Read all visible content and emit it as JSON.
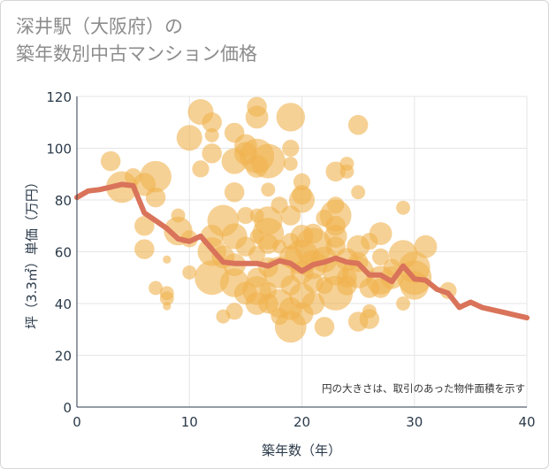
{
  "title": {
    "line1": "深井駅（大阪府）の",
    "line2": "築年数別中古マンション価格"
  },
  "note": "円の大きさは、取引のあった物件面積を示す",
  "colors": {
    "bubble": "#f0b34e",
    "line": "#d9735a",
    "grid": "#e6e6e6",
    "axis": "#2b3a4a"
  },
  "chart_data": {
    "type": "scatter",
    "xlabel": "築年数（年）",
    "ylabel": "坪（3.3㎡）単価（万円）",
    "xlim": [
      0,
      40
    ],
    "ylim": [
      0,
      120
    ],
    "xticks": [
      0,
      10,
      20,
      30,
      40
    ],
    "yticks": [
      0,
      20,
      40,
      60,
      80,
      100,
      120
    ],
    "grid": true,
    "bubbles": [
      {
        "x": 3,
        "y": 95,
        "s": 5
      },
      {
        "x": 4,
        "y": 85,
        "s": 9
      },
      {
        "x": 5,
        "y": 89,
        "s": 4
      },
      {
        "x": 6,
        "y": 86,
        "s": 6
      },
      {
        "x": 7,
        "y": 89,
        "s": 9
      },
      {
        "x": 7,
        "y": 81,
        "s": 5
      },
      {
        "x": 6,
        "y": 70,
        "s": 5
      },
      {
        "x": 6,
        "y": 61,
        "s": 5
      },
      {
        "x": 7,
        "y": 46,
        "s": 3
      },
      {
        "x": 8,
        "y": 44,
        "s": 3
      },
      {
        "x": 8,
        "y": 42,
        "s": 3
      },
      {
        "x": 8,
        "y": 39,
        "s": 1
      },
      {
        "x": 8,
        "y": 57,
        "s": 1
      },
      {
        "x": 9,
        "y": 74,
        "s": 3
      },
      {
        "x": 9,
        "y": 68,
        "s": 8
      },
      {
        "x": 10,
        "y": 104,
        "s": 7
      },
      {
        "x": 10,
        "y": 65,
        "s": 4
      },
      {
        "x": 10,
        "y": 52,
        "s": 3
      },
      {
        "x": 11,
        "y": 114,
        "s": 7
      },
      {
        "x": 12,
        "y": 110,
        "s": 5
      },
      {
        "x": 12,
        "y": 105,
        "s": 3
      },
      {
        "x": 12,
        "y": 98,
        "s": 5
      },
      {
        "x": 11,
        "y": 92,
        "s": 4
      },
      {
        "x": 12,
        "y": 66,
        "s": 6
      },
      {
        "x": 12,
        "y": 60,
        "s": 8
      },
      {
        "x": 12,
        "y": 50,
        "s": 10
      },
      {
        "x": 13,
        "y": 72,
        "s": 9
      },
      {
        "x": 13,
        "y": 58,
        "s": 6
      },
      {
        "x": 14,
        "y": 106,
        "s": 5
      },
      {
        "x": 14,
        "y": 95,
        "s": 7
      },
      {
        "x": 14,
        "y": 83,
        "s": 5
      },
      {
        "x": 14,
        "y": 66,
        "s": 7
      },
      {
        "x": 14,
        "y": 55,
        "s": 6
      },
      {
        "x": 14,
        "y": 48,
        "s": 8
      },
      {
        "x": 14,
        "y": 37,
        "s": 4
      },
      {
        "x": 13,
        "y": 35,
        "s": 3
      },
      {
        "x": 15,
        "y": 101,
        "s": 6
      },
      {
        "x": 15,
        "y": 98,
        "s": 6
      },
      {
        "x": 15,
        "y": 74,
        "s": 4
      },
      {
        "x": 15,
        "y": 62,
        "s": 5
      },
      {
        "x": 15,
        "y": 44,
        "s": 6
      },
      {
        "x": 16,
        "y": 116,
        "s": 5
      },
      {
        "x": 16,
        "y": 112,
        "s": 6
      },
      {
        "x": 16,
        "y": 97,
        "s": 10
      },
      {
        "x": 16,
        "y": 93,
        "s": 6
      },
      {
        "x": 16,
        "y": 74,
        "s": 3
      },
      {
        "x": 16,
        "y": 66,
        "s": 3
      },
      {
        "x": 16,
        "y": 59,
        "s": 4
      },
      {
        "x": 16,
        "y": 50,
        "s": 5
      },
      {
        "x": 16,
        "y": 45,
        "s": 8
      },
      {
        "x": 16,
        "y": 40,
        "s": 6
      },
      {
        "x": 17,
        "y": 95,
        "s": 10
      },
      {
        "x": 17,
        "y": 84,
        "s": 3
      },
      {
        "x": 17,
        "y": 72,
        "s": 8
      },
      {
        "x": 17,
        "y": 67,
        "s": 9
      },
      {
        "x": 17,
        "y": 63,
        "s": 5
      },
      {
        "x": 17,
        "y": 54,
        "s": 5
      },
      {
        "x": 17,
        "y": 45,
        "s": 4
      },
      {
        "x": 17,
        "y": 40,
        "s": 5
      },
      {
        "x": 18,
        "y": 78,
        "s": 4
      },
      {
        "x": 18,
        "y": 62,
        "s": 3
      },
      {
        "x": 18,
        "y": 52,
        "s": 9
      },
      {
        "x": 18,
        "y": 40,
        "s": 8
      },
      {
        "x": 18,
        "y": 35,
        "s": 4
      },
      {
        "x": 19,
        "y": 112,
        "s": 8
      },
      {
        "x": 19,
        "y": 100,
        "s": 4
      },
      {
        "x": 19,
        "y": 94,
        "s": 3
      },
      {
        "x": 19,
        "y": 74,
        "s": 5
      },
      {
        "x": 19,
        "y": 64,
        "s": 4
      },
      {
        "x": 19,
        "y": 58,
        "s": 6
      },
      {
        "x": 19,
        "y": 47,
        "s": 5
      },
      {
        "x": 19,
        "y": 38,
        "s": 6
      },
      {
        "x": 19,
        "y": 31,
        "s": 9
      },
      {
        "x": 20,
        "y": 87,
        "s": 4
      },
      {
        "x": 20,
        "y": 82,
        "s": 5
      },
      {
        "x": 20,
        "y": 80,
        "s": 7
      },
      {
        "x": 20,
        "y": 66,
        "s": 6
      },
      {
        "x": 20,
        "y": 58,
        "s": 10
      },
      {
        "x": 20,
        "y": 52,
        "s": 6
      },
      {
        "x": 20,
        "y": 43,
        "s": 7
      },
      {
        "x": 20,
        "y": 36,
        "s": 6
      },
      {
        "x": 21,
        "y": 67,
        "s": 5
      },
      {
        "x": 21,
        "y": 62,
        "s": 11
      },
      {
        "x": 21,
        "y": 55,
        "s": 8
      },
      {
        "x": 21,
        "y": 48,
        "s": 5
      },
      {
        "x": 21,
        "y": 40,
        "s": 6
      },
      {
        "x": 22,
        "y": 73,
        "s": 4
      },
      {
        "x": 22,
        "y": 57,
        "s": 7
      },
      {
        "x": 22,
        "y": 47,
        "s": 4
      },
      {
        "x": 22,
        "y": 31,
        "s": 5
      },
      {
        "x": 23,
        "y": 91,
        "s": 5
      },
      {
        "x": 23,
        "y": 78,
        "s": 4
      },
      {
        "x": 23,
        "y": 74,
        "s": 9
      },
      {
        "x": 23,
        "y": 70,
        "s": 5
      },
      {
        "x": 23,
        "y": 66,
        "s": 6
      },
      {
        "x": 23,
        "y": 62,
        "s": 5
      },
      {
        "x": 23,
        "y": 52,
        "s": 7
      },
      {
        "x": 23,
        "y": 44,
        "s": 10
      },
      {
        "x": 24,
        "y": 94,
        "s": 3
      },
      {
        "x": 24,
        "y": 91,
        "s": 3
      },
      {
        "x": 24,
        "y": 57,
        "s": 6
      },
      {
        "x": 24,
        "y": 50,
        "s": 5
      },
      {
        "x": 24,
        "y": 47,
        "s": 5
      },
      {
        "x": 25,
        "y": 109,
        "s": 5
      },
      {
        "x": 25,
        "y": 83,
        "s": 3
      },
      {
        "x": 25,
        "y": 62,
        "s": 6
      },
      {
        "x": 25,
        "y": 56,
        "s": 5
      },
      {
        "x": 25,
        "y": 52,
        "s": 9
      },
      {
        "x": 25,
        "y": 33,
        "s": 5
      },
      {
        "x": 26,
        "y": 64,
        "s": 4
      },
      {
        "x": 26,
        "y": 46,
        "s": 5
      },
      {
        "x": 26,
        "y": 37,
        "s": 3
      },
      {
        "x": 26,
        "y": 34,
        "s": 5
      },
      {
        "x": 27,
        "y": 67,
        "s": 6
      },
      {
        "x": 27,
        "y": 58,
        "s": 4
      },
      {
        "x": 27,
        "y": 49,
        "s": 8
      },
      {
        "x": 27,
        "y": 46,
        "s": 5
      },
      {
        "x": 28,
        "y": 54,
        "s": 4
      },
      {
        "x": 28,
        "y": 50,
        "s": 6
      },
      {
        "x": 29,
        "y": 77,
        "s": 3
      },
      {
        "x": 29,
        "y": 59,
        "s": 8
      },
      {
        "x": 29,
        "y": 40,
        "s": 3
      },
      {
        "x": 30,
        "y": 54,
        "s": 9
      },
      {
        "x": 30,
        "y": 50,
        "s": 10
      },
      {
        "x": 30,
        "y": 47,
        "s": 8
      },
      {
        "x": 31,
        "y": 62,
        "s": 6
      },
      {
        "x": 33,
        "y": 45,
        "s": 4
      }
    ],
    "line": {
      "x": [
        0,
        1,
        2,
        3,
        4,
        5,
        6,
        7,
        8,
        9,
        10,
        11,
        12,
        13,
        14,
        15,
        16,
        17,
        18,
        19,
        20,
        21,
        22,
        23,
        24,
        25,
        26,
        27,
        28,
        29,
        30,
        31,
        32,
        33,
        34,
        35,
        36,
        37,
        38,
        39,
        40
      ],
      "y": [
        81,
        83.5,
        84,
        85,
        86,
        85.5,
        75,
        72,
        69,
        65,
        64,
        66,
        61,
        56,
        55.5,
        55.5,
        55.5,
        54.5,
        56.5,
        55.5,
        52.5,
        55,
        56,
        57.5,
        56,
        55.5,
        51,
        51,
        48.5,
        54.5,
        49.5,
        49,
        45.5,
        44,
        38.5,
        40.5,
        38.5,
        37.5,
        36.5,
        35.5,
        34.5
      ]
    }
  }
}
